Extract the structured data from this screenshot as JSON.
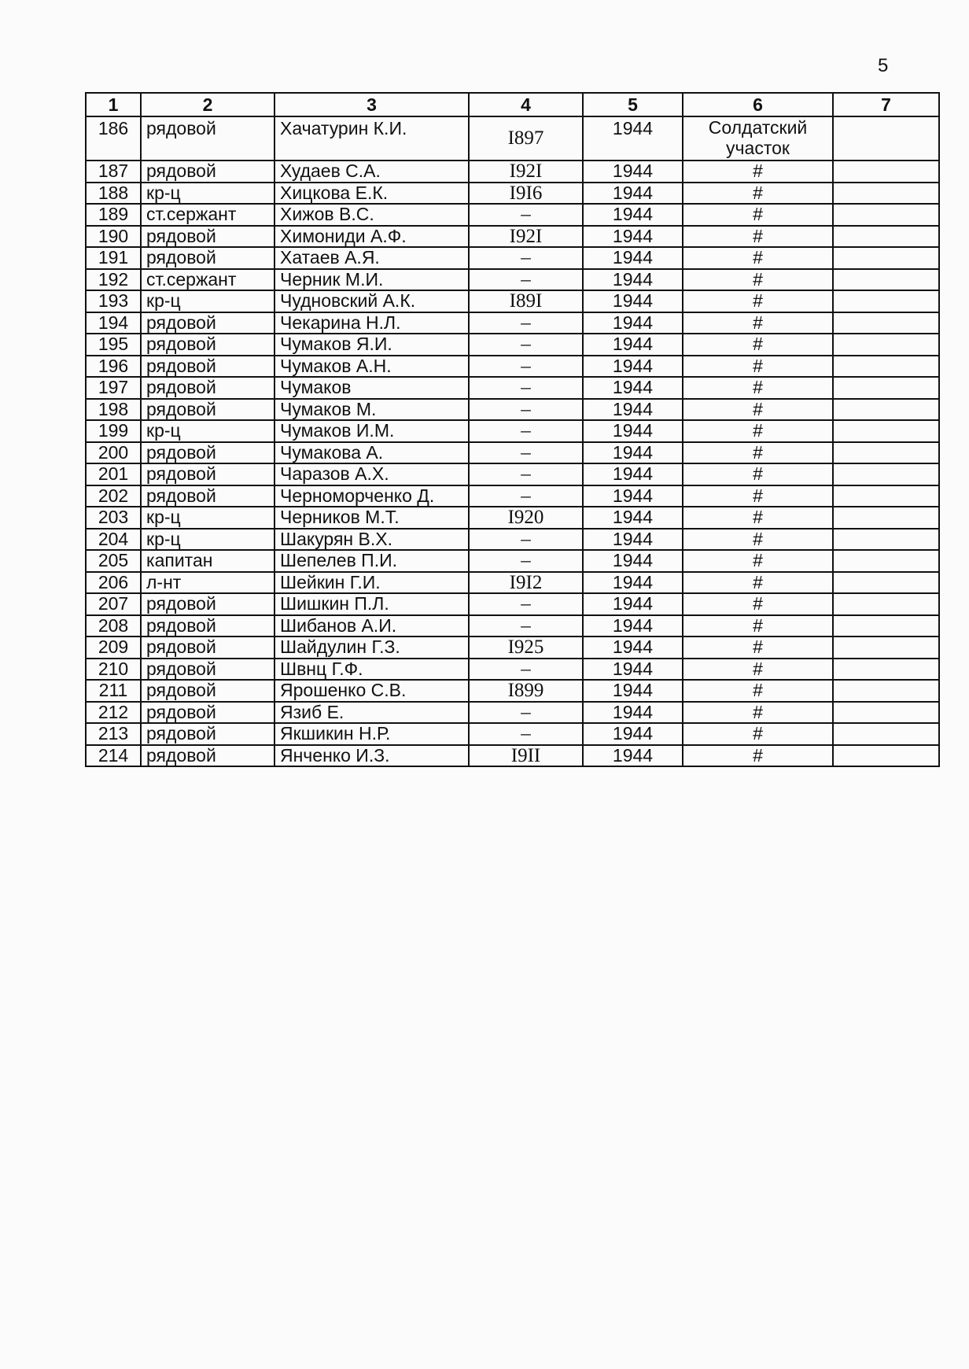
{
  "page_number": "5",
  "table": {
    "headers": [
      "1",
      "2",
      "3",
      "4",
      "5",
      "6",
      "7"
    ],
    "rows": [
      [
        "186",
        "рядовой",
        "Хачатурин К.И.",
        "I897",
        "1944",
        "Солдатский участок",
        ""
      ],
      [
        "187",
        "рядовой",
        "Худаев С.А.",
        "I92I",
        "1944",
        "#",
        ""
      ],
      [
        "188",
        "кр-ц",
        "Хицкова Е.К.",
        "I9I6",
        "1944",
        "#",
        ""
      ],
      [
        "189",
        "ст.сержант",
        "Хижов В.С.",
        "–",
        "1944",
        "#",
        ""
      ],
      [
        "190",
        "рядовой",
        "Химониди А.Ф.",
        "I92I",
        "1944",
        "#",
        ""
      ],
      [
        "191",
        "рядовой",
        "Хатаев А.Я.",
        "–",
        "1944",
        "#",
        ""
      ],
      [
        "192",
        "ст.сержант",
        "Черник М.И.",
        "–",
        "1944",
        "#",
        ""
      ],
      [
        "193",
        "кр-ц",
        "Чудновский А.К.",
        "I89I",
        "1944",
        "#",
        ""
      ],
      [
        "194",
        "рядовой",
        "Чекарина Н.Л.",
        "–",
        "1944",
        "#",
        ""
      ],
      [
        "195",
        "рядовой",
        "Чумаков Я.И.",
        "–",
        "1944",
        "#",
        ""
      ],
      [
        "196",
        "рядовой",
        "Чумаков А.Н.",
        "–",
        "1944",
        "#",
        ""
      ],
      [
        "197",
        "рядовой",
        "Чумаков",
        "–",
        "1944",
        "#",
        ""
      ],
      [
        "198",
        "рядовой",
        "Чумаков М.",
        "–",
        "1944",
        "#",
        ""
      ],
      [
        "199",
        "кр-ц",
        "Чумаков И.М.",
        "–",
        "1944",
        "#",
        ""
      ],
      [
        "200",
        "рядовой",
        "Чумакова А.",
        "–",
        "1944",
        "#",
        ""
      ],
      [
        "201",
        "рядовой",
        "Чаразов А.Х.",
        "–",
        "1944",
        "#",
        ""
      ],
      [
        "202",
        "рядовой",
        "Черноморченко Д.",
        "–",
        "1944",
        "#",
        ""
      ],
      [
        "203",
        "кр-ц",
        "Черников М.Т.",
        "I920",
        "1944",
        "#",
        ""
      ],
      [
        "204",
        "кр-ц",
        "Шакурян В.Х.",
        "–",
        "1944",
        "#",
        ""
      ],
      [
        "205",
        "капитан",
        "Шепелев П.И.",
        "–",
        "1944",
        "#",
        ""
      ],
      [
        "206",
        "л-нт",
        "Шейкин Г.И.",
        "I9I2",
        "1944",
        "#",
        ""
      ],
      [
        "207",
        "рядовой",
        "Шишкин П.Л.",
        "–",
        "1944",
        "#",
        ""
      ],
      [
        "208",
        "рядовой",
        "Шибанов А.И.",
        "–",
        "1944",
        "#",
        ""
      ],
      [
        "209",
        "рядовой",
        "Шайдулин Г.З.",
        "I925",
        "1944",
        "#",
        ""
      ],
      [
        "210",
        "рядовой",
        "Швнц Г.Ф.",
        "–",
        "1944",
        "#",
        ""
      ],
      [
        "211",
        "рядовой",
        "Ярошенко С.В.",
        "I899",
        "1944",
        "#",
        ""
      ],
      [
        "212",
        "рядовой",
        "Язиб Е.",
        "–",
        "1944",
        "#",
        ""
      ],
      [
        "213",
        "рядовой",
        "Якшикин Н.Р.",
        "–",
        "1944",
        "#",
        ""
      ],
      [
        "214",
        "рядовой",
        "Янченко И.З.",
        "I9II",
        "1944",
        "#",
        ""
      ]
    ]
  }
}
